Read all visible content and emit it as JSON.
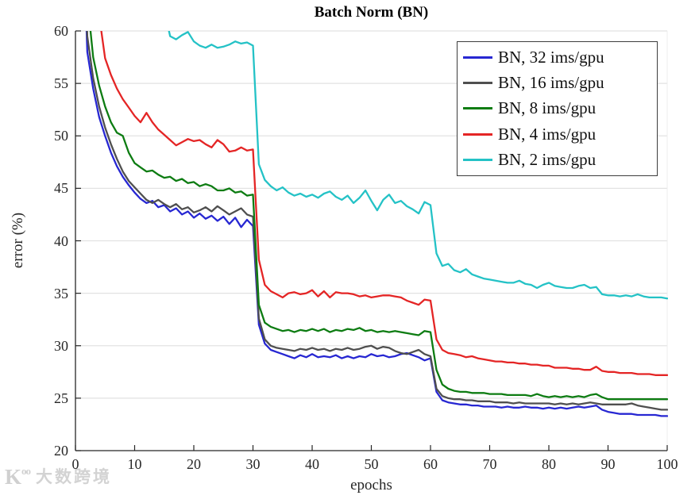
{
  "watermark": {
    "logo_main": "K",
    "logo_sup": "oo",
    "text": "大数跨境"
  },
  "chart_data": {
    "type": "line",
    "title": "Batch Norm (BN)",
    "xlabel": "epochs",
    "ylabel": "error (%)",
    "xlim": [
      0,
      100
    ],
    "ylim": [
      20,
      60
    ],
    "xticks": [
      0,
      10,
      20,
      30,
      40,
      50,
      60,
      70,
      80,
      90,
      100
    ],
    "yticks": [
      20,
      25,
      30,
      35,
      40,
      45,
      50,
      55,
      60
    ],
    "grid": "horizontal-only",
    "grid_color": "#e2e2e2",
    "axis_color": "#262626",
    "legend_position": "top-right",
    "note": "error (%) vs training epochs; learning-rate drops cause steps at epochs 30 and 60; curves are clipped at top ylim 60; x0 = first epoch of each series, step 1",
    "series": [
      {
        "name": "BN, 32 ims/gpu",
        "color": "#2727d2",
        "x0": 1,
        "y": [
          75,
          58,
          54.5,
          51.8,
          50,
          48.4,
          47.1,
          46.1,
          45.3,
          44.6,
          44,
          43.6,
          43.8,
          43.2,
          43.4,
          42.8,
          43.1,
          42.5,
          42.8,
          42.2,
          42.6,
          42.1,
          42.4,
          41.9,
          42.3,
          41.6,
          42.2,
          41.3,
          42,
          41.4,
          32,
          30.2,
          29.6,
          29.4,
          29.2,
          29,
          28.8,
          29.1,
          28.9,
          29.2,
          28.9,
          29,
          28.9,
          29.1,
          28.8,
          29,
          28.8,
          29,
          28.9,
          29.2,
          29,
          29.1,
          28.9,
          29,
          29.2,
          29.3,
          29.1,
          28.9,
          28.6,
          28.8,
          25.6,
          24.8,
          24.6,
          24.5,
          24.4,
          24.4,
          24.3,
          24.3,
          24.2,
          24.2,
          24.2,
          24.1,
          24.2,
          24.1,
          24.1,
          24.2,
          24.1,
          24.1,
          24,
          24.1,
          24,
          24.1,
          24,
          24.1,
          24.2,
          24.1,
          24.2,
          24.3,
          23.9,
          23.7,
          23.6,
          23.5,
          23.5,
          23.5,
          23.4,
          23.4,
          23.4,
          23.4,
          23.3,
          23.3
        ]
      },
      {
        "name": "BN, 16 ims/gpu",
        "color": "#4f4f4f",
        "x0": 1,
        "y": [
          78,
          59.5,
          55.5,
          52.8,
          50.8,
          49.2,
          47.8,
          46.6,
          45.7,
          45.1,
          44.5,
          43.9,
          43.6,
          43.9,
          43.5,
          43.2,
          43.5,
          43,
          43.2,
          42.7,
          42.9,
          43.2,
          42.8,
          43.3,
          42.9,
          42.5,
          42.8,
          43.1,
          42.5,
          42.3,
          32.6,
          30.6,
          30,
          29.8,
          29.7,
          29.6,
          29.5,
          29.7,
          29.6,
          29.8,
          29.6,
          29.7,
          29.5,
          29.7,
          29.6,
          29.8,
          29.6,
          29.7,
          29.9,
          30,
          29.7,
          29.9,
          29.8,
          29.5,
          29.3,
          29.2,
          29.4,
          29.6,
          29.2,
          29,
          25.9,
          25.2,
          25,
          24.9,
          24.9,
          24.8,
          24.8,
          24.7,
          24.7,
          24.7,
          24.6,
          24.6,
          24.6,
          24.5,
          24.6,
          24.5,
          24.5,
          24.5,
          24.5,
          24.5,
          24.4,
          24.5,
          24.4,
          24.5,
          24.4,
          24.5,
          24.6,
          24.5,
          24.4,
          24.4,
          24.4,
          24.4,
          24.4,
          24.5,
          24.3,
          24.2,
          24.1,
          24,
          23.9,
          23.9
        ]
      },
      {
        "name": "BN, 8 ims/gpu",
        "color": "#0d7c12",
        "x0": 1,
        "y": [
          82,
          63,
          57.5,
          54.8,
          52.8,
          51.3,
          50.3,
          50,
          48.4,
          47.4,
          47,
          46.6,
          46.7,
          46.3,
          46,
          46.1,
          45.7,
          45.9,
          45.5,
          45.6,
          45.2,
          45.4,
          45.2,
          44.8,
          44.8,
          45,
          44.6,
          44.7,
          44.3,
          44.4,
          33.9,
          32.2,
          31.8,
          31.6,
          31.4,
          31.5,
          31.3,
          31.5,
          31.4,
          31.6,
          31.4,
          31.6,
          31.3,
          31.5,
          31.4,
          31.6,
          31.5,
          31.7,
          31.4,
          31.5,
          31.3,
          31.4,
          31.3,
          31.4,
          31.3,
          31.2,
          31.1,
          31,
          31.4,
          31.3,
          27.7,
          26.3,
          25.9,
          25.7,
          25.6,
          25.6,
          25.5,
          25.5,
          25.5,
          25.4,
          25.4,
          25.4,
          25.3,
          25.3,
          25.3,
          25.3,
          25.2,
          25.4,
          25.2,
          25.1,
          25.2,
          25.1,
          25.2,
          25.1,
          25.2,
          25.1,
          25.3,
          25.4,
          25.1,
          24.9,
          24.9,
          24.9,
          24.9,
          24.9,
          24.9,
          24.9,
          24.9,
          24.9,
          24.9,
          24.9
        ]
      },
      {
        "name": "BN, 4 ims/gpu",
        "color": "#e42525",
        "x0": 3,
        "y": [
          68,
          61.5,
          57.4,
          55.8,
          54.5,
          53.5,
          52.7,
          51.9,
          51.3,
          52.2,
          51.3,
          50.6,
          50.1,
          49.6,
          49.1,
          49.4,
          49.7,
          49.5,
          49.6,
          49.2,
          48.9,
          49.6,
          49.2,
          48.5,
          48.6,
          48.9,
          48.6,
          48.7,
          38.2,
          35.8,
          35.2,
          34.9,
          34.6,
          35,
          35.1,
          34.9,
          35,
          35.3,
          34.7,
          35.2,
          34.6,
          35.1,
          35,
          35,
          34.9,
          34.7,
          34.8,
          34.6,
          34.7,
          34.8,
          34.8,
          34.7,
          34.6,
          34.3,
          34.1,
          33.9,
          34.4,
          34.3,
          30.6,
          29.6,
          29.3,
          29.2,
          29.1,
          28.9,
          29,
          28.8,
          28.7,
          28.6,
          28.5,
          28.5,
          28.4,
          28.4,
          28.3,
          28.3,
          28.2,
          28.2,
          28.1,
          28.1,
          27.9,
          27.9,
          27.9,
          27.8,
          27.8,
          27.7,
          27.7,
          28,
          27.6,
          27.5,
          27.5,
          27.4,
          27.4,
          27.4,
          27.3,
          27.3,
          27.3,
          27.2,
          27.2,
          27.2
        ]
      },
      {
        "name": "BN, 2 ims/gpu",
        "color": "#24c2c6",
        "x0": 15,
        "y": [
          62,
          59.5,
          59.2,
          59.6,
          59.9,
          59,
          58.6,
          58.4,
          58.7,
          58.4,
          58.5,
          58.7,
          59,
          58.8,
          58.9,
          58.6,
          47.3,
          45.8,
          45.2,
          44.8,
          45.1,
          44.6,
          44.3,
          44.5,
          44.2,
          44.4,
          44.1,
          44.5,
          44.7,
          44.2,
          43.9,
          44.3,
          43.6,
          44.1,
          44.8,
          43.8,
          42.9,
          43.9,
          44.4,
          43.6,
          43.8,
          43.3,
          43,
          42.6,
          43.7,
          43.4,
          38.8,
          37.6,
          37.8,
          37.2,
          37,
          37.3,
          36.8,
          36.6,
          36.4,
          36.3,
          36.2,
          36.1,
          36,
          36,
          36.2,
          35.9,
          35.8,
          35.5,
          35.8,
          36,
          35.7,
          35.6,
          35.5,
          35.5,
          35.7,
          35.8,
          35.5,
          35.6,
          34.9,
          34.8,
          34.8,
          34.7,
          34.8,
          34.7,
          34.9,
          34.7,
          34.6,
          34.6,
          34.6,
          34.5
        ]
      }
    ]
  }
}
